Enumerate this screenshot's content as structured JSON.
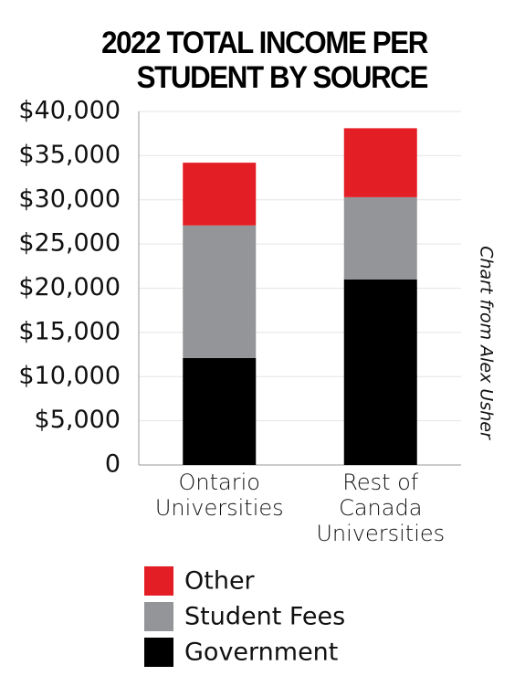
{
  "chart_data": {
    "type": "stacked-bar",
    "title": "2022 TOTAL INCOME PER STUDENT BY SOURCE",
    "annotation": "Chart from Alex Usher",
    "categories": [
      "Ontario Universities",
      "Rest of Canada Universities"
    ],
    "series": [
      {
        "name": "Government",
        "color": "#000000",
        "values": [
          12100,
          21000
        ]
      },
      {
        "name": "Student Fees",
        "color": "#939598",
        "values": [
          15000,
          9300
        ]
      },
      {
        "name": "Other",
        "color": "#e31e24",
        "values": [
          7100,
          7800
        ]
      }
    ],
    "ylim": [
      0,
      40000
    ],
    "yticks": [
      0,
      {
        "value": 5000,
        "label": "$5,000"
      },
      {
        "value": 10000,
        "label": "$10,000"
      },
      {
        "value": 15000,
        "label": "$15,000"
      },
      {
        "value": 20000,
        "label": "$20,000"
      },
      {
        "value": 25000,
        "label": "$25,000"
      },
      {
        "value": 30000,
        "label": "$30,000"
      },
      {
        "value": 35000,
        "label": "$35,000"
      },
      {
        "value": 40000,
        "label": "$40,000"
      }
    ],
    "grid": true
  }
}
